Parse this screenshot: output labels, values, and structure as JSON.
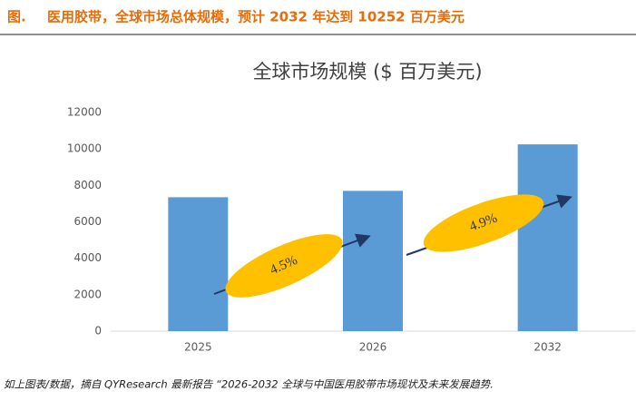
{
  "header": {
    "label": "图.",
    "title": "医用胶带，全球市场总体规模，预计 2032 年达到 10252 百万美元"
  },
  "chart_data": {
    "type": "bar",
    "title": "全球市场规模 ($ 百万美元)",
    "categories": [
      "2025",
      "2026",
      "2032"
    ],
    "values": [
      7350,
      7700,
      10252
    ],
    "color": "#5b9bd5",
    "ylim": [
      0,
      12000
    ],
    "yticks": [
      0,
      2000,
      4000,
      6000,
      8000,
      10000,
      12000
    ],
    "grid": false,
    "annotations": [
      {
        "text": "4.5%",
        "color": "#ffc000"
      },
      {
        "text": "4.9%",
        "color": "#ffc000"
      }
    ]
  },
  "footer": {
    "source": "如上图表/数据，摘自 QYResearch 最新报告 “2026-2032 全球与中国医用胶带市场现状及未来发展趋势."
  }
}
